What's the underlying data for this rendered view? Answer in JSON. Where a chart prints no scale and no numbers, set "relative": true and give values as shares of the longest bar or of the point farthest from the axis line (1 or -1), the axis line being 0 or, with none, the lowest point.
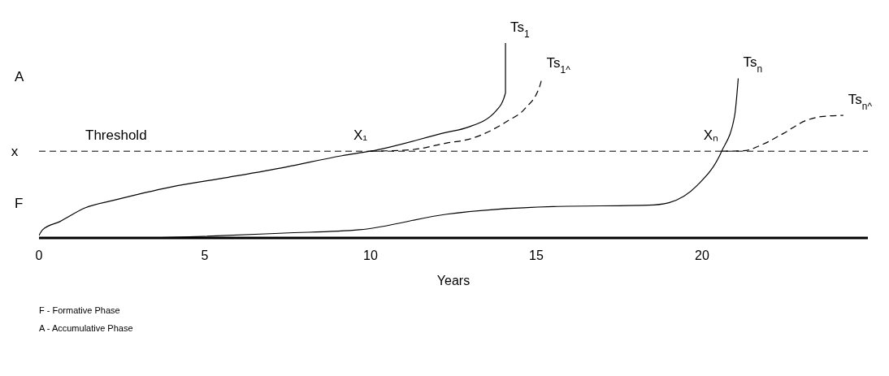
{
  "chart_data": {
    "type": "line",
    "relative": true,
    "xlabel": "Years",
    "xlim": [
      0,
      25
    ],
    "xticks": [
      0,
      5,
      10,
      15,
      20
    ],
    "grid": false,
    "marker": "none",
    "ref_lines": [
      {
        "axis": "y",
        "value": 0.445,
        "label": "Threshold",
        "color": "#000000",
        "line_style": "dashed"
      }
    ],
    "series": [
      {
        "name": "Ts$_{1}$",
        "color": "#000000",
        "line_style": "solid",
        "x": [
          0,
          0.11,
          0.63,
          1.4,
          2.25,
          3.97,
          5.71,
          7.43,
          9.14,
          10,
          12.3,
          12.92,
          13.8,
          14.07,
          14.07
        ],
        "values": [
          0.013,
          0.042,
          0.084,
          0.155,
          0.193,
          0.261,
          0.311,
          0.363,
          0.422,
          0.445,
          0.542,
          0.567,
          0.655,
          0.744,
          1
        ]
      },
      {
        "name": "Ts$_{1^}$",
        "color": "#000000",
        "line_style": "dashed",
        "x": [
          10,
          11.2,
          12.3,
          13,
          14.14,
          14.66,
          15.12,
          15.16
        ],
        "values": [
          0.445,
          0.452,
          0.487,
          0.508,
          0.601,
          0.664,
          0.788,
          0.815
        ]
      },
      {
        "name": "Ts$_{n}$",
        "color": "#000000",
        "line_style": "solid",
        "x": [
          3.24,
          4.95,
          7.4,
          9.66,
          12.3,
          15.51,
          18.38,
          19,
          19.85,
          20.59,
          20.98,
          21.09
        ],
        "values": [
          0,
          0.008,
          0.025,
          0.042,
          0.122,
          0.161,
          0.168,
          0.181,
          0.269,
          0.445,
          0.626,
          0.819
        ]
      },
      {
        "name": "Ts$_{n^}$",
        "color": "#000000",
        "line_style": "dashed",
        "x": [
          20.59,
          21.24,
          21.84,
          22.45,
          23.14,
          23.58,
          24.26
        ],
        "values": [
          0.445,
          0.447,
          0.481,
          0.536,
          0.603,
          0.622,
          0.629
        ]
      }
    ],
    "annotations": [
      {
        "text": "X₁",
        "x": 10,
        "y": 0.445
      },
      {
        "text": "Xₙ",
        "x": 20.59,
        "y": 0.445
      },
      {
        "text": "x",
        "x": 0,
        "y": 0.445
      },
      "A",
      "F",
      "F - Formative Phase",
      "A - Accumulative Phase"
    ]
  }
}
